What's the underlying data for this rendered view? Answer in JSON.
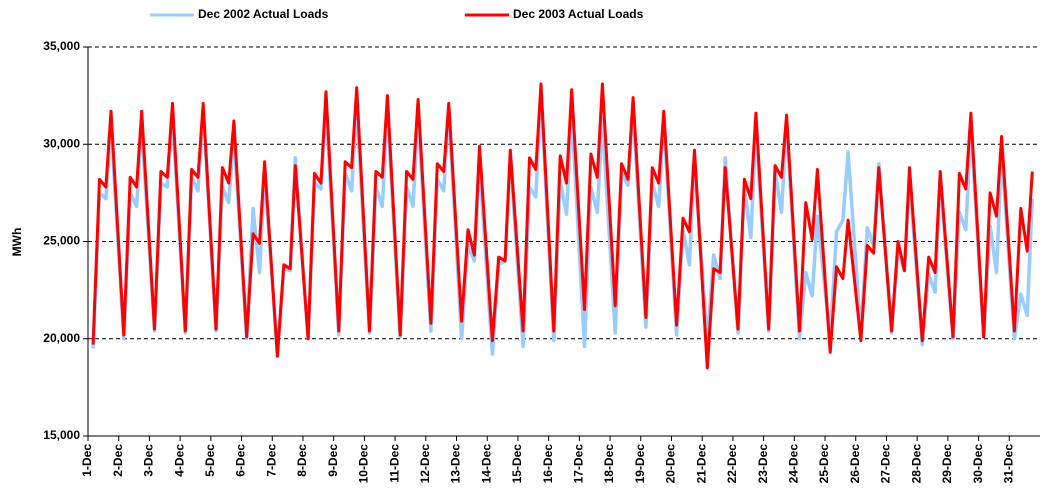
{
  "chart_data": {
    "type": "line",
    "y_label": "MWh",
    "x": [
      1.167,
      1.375,
      1.583,
      1.75,
      2.167,
      2.375,
      2.583,
      2.75,
      3.167,
      3.375,
      3.583,
      3.75,
      4.167,
      4.375,
      4.583,
      4.75,
      5.167,
      5.375,
      5.583,
      5.75,
      6.167,
      6.375,
      6.583,
      6.75,
      7.167,
      7.375,
      7.583,
      7.75,
      8.167,
      8.375,
      8.583,
      8.75,
      9.167,
      9.375,
      9.583,
      9.75,
      10.167,
      10.375,
      10.583,
      10.75,
      11.167,
      11.375,
      11.583,
      11.75,
      12.167,
      12.375,
      12.583,
      12.75,
      13.167,
      13.375,
      13.583,
      13.75,
      14.167,
      14.375,
      14.583,
      14.75,
      15.167,
      15.375,
      15.583,
      15.75,
      16.167,
      16.375,
      16.583,
      16.75,
      17.167,
      17.375,
      17.583,
      17.75,
      18.167,
      18.375,
      18.583,
      18.75,
      19.167,
      19.375,
      19.583,
      19.75,
      20.167,
      20.375,
      20.583,
      20.75,
      21.167,
      21.375,
      21.583,
      21.75,
      22.167,
      22.375,
      22.583,
      22.75,
      23.167,
      23.375,
      23.583,
      23.75,
      24.167,
      24.375,
      24.583,
      24.75,
      25.167,
      25.375,
      25.583,
      25.75,
      26.167,
      26.375,
      26.583,
      26.75,
      27.167,
      27.375,
      27.583,
      27.75,
      28.167,
      28.375,
      28.583,
      28.75,
      29.167,
      29.375,
      29.583,
      29.75,
      30.167,
      30.375,
      30.583,
      30.75,
      31.167,
      31.375,
      31.583,
      31.75
    ],
    "series": [
      {
        "name": "Dec 2002 Actual Loads",
        "color": "#99ccff",
        "values": [
          19500,
          27500,
          27200,
          31000,
          20000,
          27500,
          26800,
          31000,
          20400,
          28000,
          27800,
          31500,
          20300,
          28300,
          27600,
          31800,
          20400,
          27800,
          27000,
          30500,
          20000,
          26700,
          23400,
          28500,
          19200,
          23600,
          23500,
          29300,
          20000,
          28000,
          27700,
          32000,
          20200,
          28500,
          27600,
          32000,
          20300,
          27800,
          26800,
          31800,
          20100,
          27800,
          26800,
          31500,
          20400,
          28200,
          27600,
          31800,
          20000,
          24800,
          24000,
          29000,
          19200,
          23800,
          24000,
          29400,
          19600,
          27800,
          27300,
          32600,
          19900,
          28100,
          26400,
          31700,
          19600,
          27800,
          26500,
          31300,
          20300,
          28500,
          27900,
          31800,
          20600,
          28000,
          26800,
          31200,
          20200,
          25600,
          23800,
          29200,
          19800,
          24300,
          23100,
          29300,
          20300,
          27800,
          25200,
          30800,
          20400,
          28600,
          26500,
          31000,
          20000,
          23400,
          22200,
          26300,
          20000,
          25500,
          26100,
          29600,
          20200,
          25700,
          24800,
          29000,
          20300,
          24600,
          23500,
          28200,
          19700,
          23300,
          22400,
          28300,
          20000,
          26500,
          25600,
          30900,
          20100,
          25800,
          23400,
          29700,
          20000,
          22300,
          21200,
          27200
        ]
      },
      {
        "name": "Dec 2003 Actual Loads",
        "color": "#ff0000",
        "values": [
          19700,
          28200,
          27800,
          31700,
          20200,
          28300,
          27800,
          31700,
          20500,
          28600,
          28300,
          32100,
          20400,
          28700,
          28300,
          32100,
          20500,
          28800,
          28000,
          31200,
          20100,
          25400,
          24900,
          29100,
          19100,
          23800,
          23600,
          28900,
          20000,
          28500,
          28000,
          32700,
          20400,
          29100,
          28800,
          32900,
          20400,
          28600,
          28300,
          32500,
          20200,
          28600,
          28200,
          32300,
          20800,
          29000,
          28600,
          32100,
          20900,
          25600,
          24300,
          29900,
          19900,
          24200,
          24000,
          29700,
          20400,
          29300,
          28700,
          33100,
          20400,
          29400,
          28000,
          32800,
          21500,
          29500,
          28300,
          33100,
          21700,
          29000,
          28200,
          32400,
          21100,
          28800,
          28000,
          31700,
          20700,
          26200,
          25500,
          29700,
          18500,
          23600,
          23400,
          28800,
          20500,
          28200,
          27200,
          31600,
          20500,
          28900,
          28300,
          31500,
          20400,
          27000,
          25100,
          28700,
          19300,
          23700,
          23100,
          26100,
          19900,
          24800,
          24400,
          28800,
          20400,
          25000,
          23500,
          28800,
          19900,
          24200,
          23400,
          28600,
          20100,
          28500,
          27700,
          31600,
          20100,
          27500,
          26300,
          30400,
          20400,
          26700,
          24500,
          28600
        ]
      }
    ],
    "xlim": [
      1,
      32
    ],
    "xticks": [
      {
        "value": 1,
        "label": "1-Dec"
      },
      {
        "value": 2,
        "label": "2-Dec"
      },
      {
        "value": 3,
        "label": "3-Dec"
      },
      {
        "value": 4,
        "label": "4-Dec"
      },
      {
        "value": 5,
        "label": "5-Dec"
      },
      {
        "value": 6,
        "label": "6-Dec"
      },
      {
        "value": 7,
        "label": "7-Dec"
      },
      {
        "value": 8,
        "label": "8-Dec"
      },
      {
        "value": 9,
        "label": "9-Dec"
      },
      {
        "value": 10,
        "label": "10-Dec"
      },
      {
        "value": 11,
        "label": "11-Dec"
      },
      {
        "value": 12,
        "label": "12-Dec"
      },
      {
        "value": 13,
        "label": "13-Dec"
      },
      {
        "value": 14,
        "label": "14-Dec"
      },
      {
        "value": 15,
        "label": "15-Dec"
      },
      {
        "value": 16,
        "label": "16-Dec"
      },
      {
        "value": 17,
        "label": "17-Dec"
      },
      {
        "value": 18,
        "label": "18-Dec"
      },
      {
        "value": 19,
        "label": "19-Dec"
      },
      {
        "value": 20,
        "label": "20-Dec"
      },
      {
        "value": 21,
        "label": "21-Dec"
      },
      {
        "value": 22,
        "label": "22-Dec"
      },
      {
        "value": 23,
        "label": "23-Dec"
      },
      {
        "value": 24,
        "label": "24-Dec"
      },
      {
        "value": 25,
        "label": "25-Dec"
      },
      {
        "value": 26,
        "label": "26-Dec"
      },
      {
        "value": 27,
        "label": "27-Dec"
      },
      {
        "value": 28,
        "label": "28-Dec"
      },
      {
        "value": 29,
        "label": "29-Dec"
      },
      {
        "value": 30,
        "label": "30-Dec"
      },
      {
        "value": 31,
        "label": "31-Dec"
      }
    ],
    "ylim": [
      15000,
      35000
    ],
    "yticks": [
      {
        "value": 15000,
        "label": "15,000"
      },
      {
        "value": 20000,
        "label": "20,000"
      },
      {
        "value": 25000,
        "label": "25,000"
      },
      {
        "value": 30000,
        "label": "30,000"
      },
      {
        "value": 35000,
        "label": "35,000"
      }
    ],
    "grid": true,
    "legend": "top"
  }
}
